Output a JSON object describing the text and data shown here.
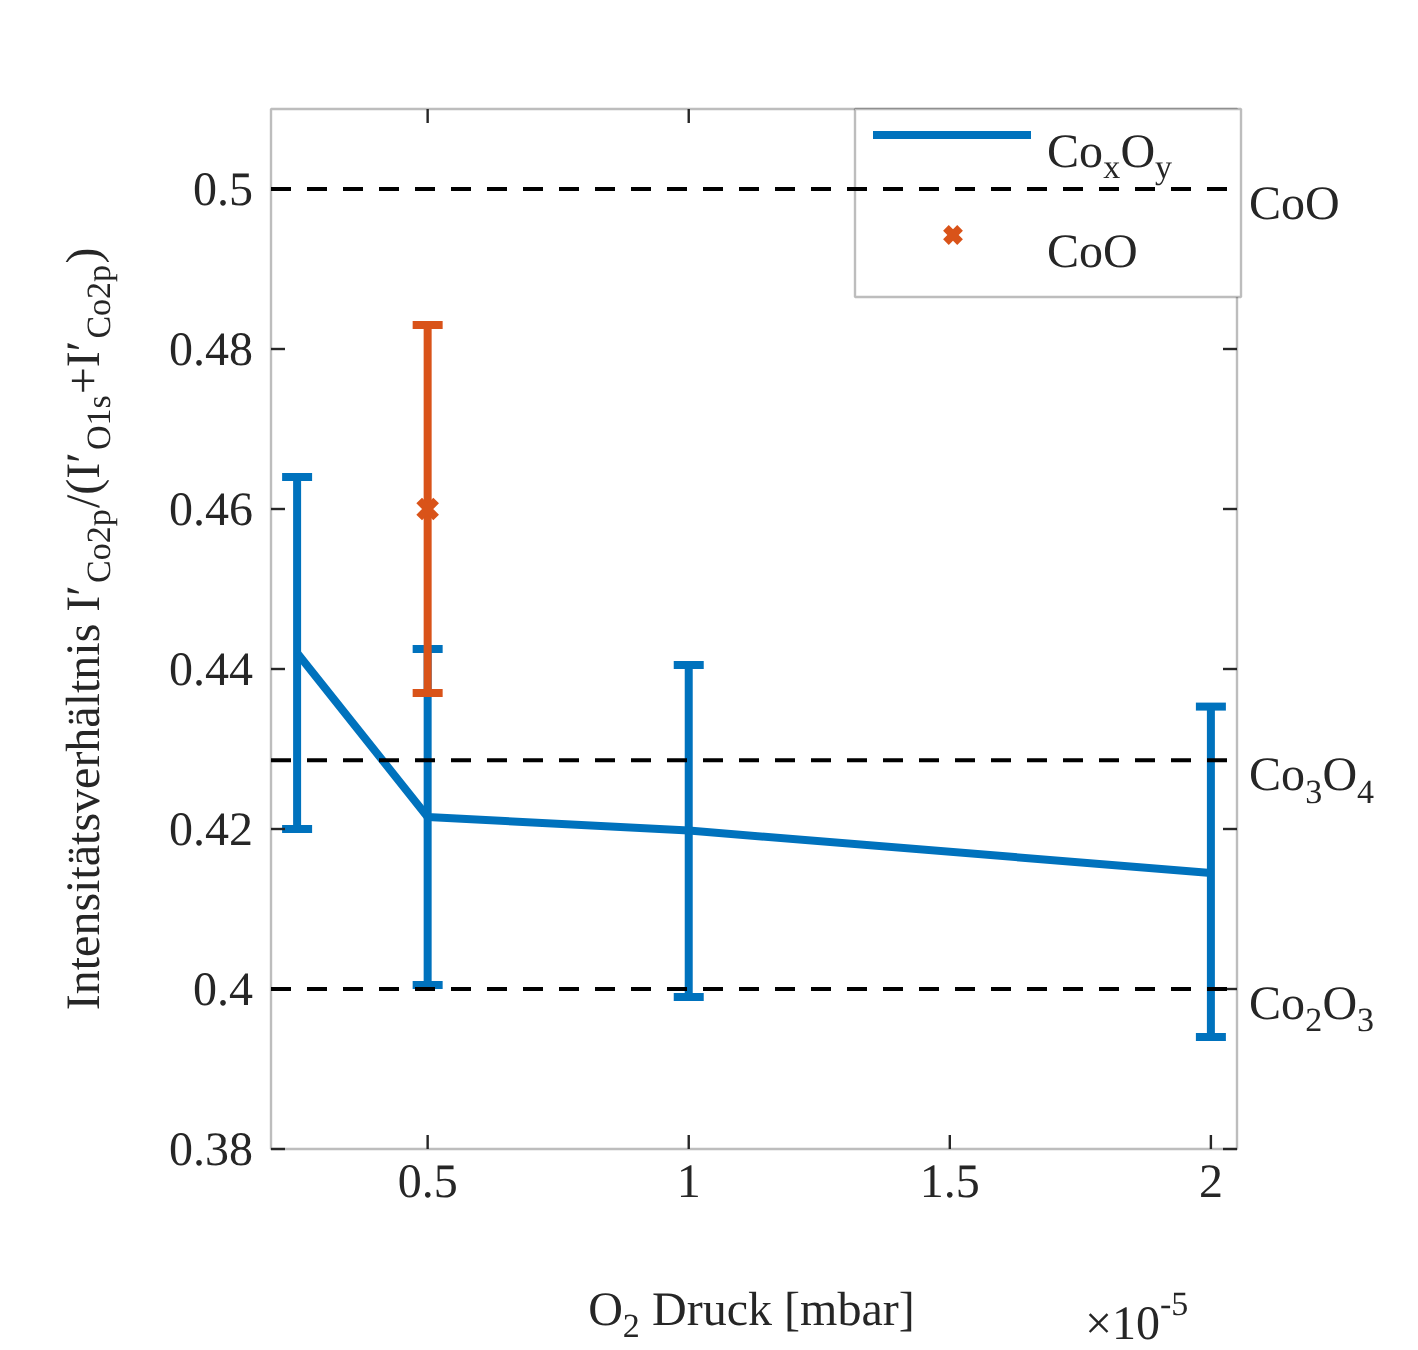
{
  "chart_data": {
    "type": "line",
    "xlabel": "O$_{2}$ Druck [mbar]",
    "ylabel": "Intensitätsverhältnis I′$_{Co2p}$/(I′$_{O1s}$+I′$_{Co2p}$)",
    "annotations": [
      "×10$^{-5}$"
    ],
    "xlim": [
      0.2,
      2.05
    ],
    "xticks": [
      0.5,
      1,
      1.5,
      2
    ],
    "ylim": [
      0.38,
      0.51
    ],
    "yticks": [
      0.38,
      0.4,
      0.42,
      0.44,
      0.46,
      0.48,
      0.5
    ],
    "grid": false,
    "legend": "top right",
    "series": [
      {
        "name": "Co$_{x}$O$_{y}$",
        "color": "#0072bd",
        "marker": "none",
        "x": [
          0.25,
          0.5,
          1,
          2
        ],
        "values": [
          0.442,
          0.4215,
          0.4198,
          0.4145
        ],
        "errors": [
          [
            0.42,
            0.464
          ],
          [
            0.4005,
            0.4425
          ],
          [
            0.399,
            0.4405
          ],
          [
            0.394,
            0.4353
          ]
        ]
      },
      {
        "name": "CoO",
        "type": "scatter",
        "color": "#d95319",
        "marker": "cross",
        "x": [
          0.5
        ],
        "values": [
          0.46
        ],
        "errors": [
          [
            0.437,
            0.483
          ]
        ]
      }
    ],
    "ref_lines": [
      {
        "axis": "y",
        "value": 0.5,
        "label": "CoO",
        "color": "#000000",
        "line_style": "dashed"
      },
      {
        "axis": "y",
        "value": 0.4286,
        "label": "Co$_{3}$O$_{4}$",
        "color": "#000000",
        "line_style": "dashed"
      },
      {
        "axis": "y",
        "value": 0.4,
        "label": "Co$_{2}$O$_{3}$",
        "color": "#000000",
        "line_style": "dashed"
      }
    ]
  }
}
